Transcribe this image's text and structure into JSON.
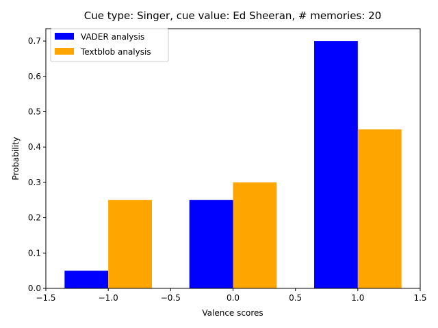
{
  "chart_data": {
    "type": "bar",
    "title": "Cue type: Singer, cue value: Ed Sheeran, # memories: 20",
    "xlabel": "Valence scores",
    "ylabel": "Probability",
    "xlim": [
      -1.5,
      1.5
    ],
    "ylim": [
      0,
      0.735
    ],
    "x_ticks": [
      -1.5,
      -1.0,
      -0.5,
      0.0,
      0.5,
      1.0,
      1.5
    ],
    "x_tick_labels": [
      "−1.5",
      "−1.0",
      "−0.5",
      "0.0",
      "0.5",
      "1.0",
      "1.5"
    ],
    "y_ticks": [
      0.0,
      0.1,
      0.2,
      0.3,
      0.4,
      0.5,
      0.6,
      0.7
    ],
    "y_tick_labels": [
      "0.0",
      "0.1",
      "0.2",
      "0.3",
      "0.4",
      "0.5",
      "0.6",
      "0.7"
    ],
    "categories": [
      -1,
      0,
      1
    ],
    "bar_width": 0.35,
    "legend_position": "upper-left",
    "grid": false,
    "series": [
      {
        "name": "VADER analysis",
        "color": "#0000ff",
        "offset": -0.175,
        "values": [
          0.05,
          0.25,
          0.7
        ]
      },
      {
        "name": "Textblob analysis",
        "color": "#ffa500",
        "offset": 0.175,
        "values": [
          0.25,
          0.3,
          0.45
        ]
      }
    ]
  }
}
